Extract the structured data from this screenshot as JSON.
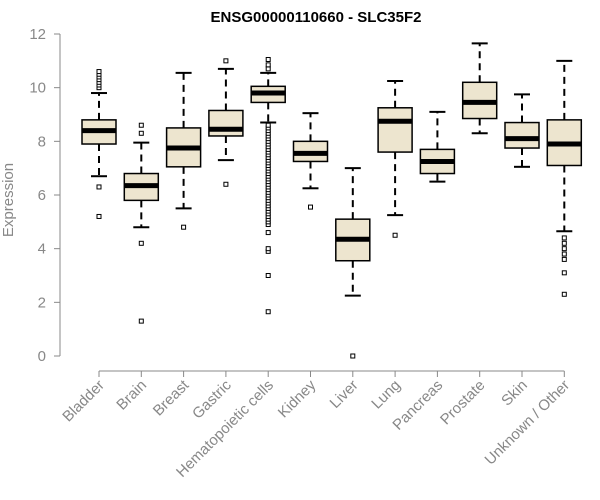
{
  "chart_data": {
    "type": "boxplot",
    "title": "ENSG00000110660 - SLC35F2",
    "xlabel": "",
    "ylabel": "Expression",
    "ylim": [
      0,
      12
    ],
    "yticks": [
      0,
      2,
      4,
      6,
      8,
      10,
      12
    ],
    "grid": false,
    "legend": "none",
    "colors": {
      "box_fill": "#ede5cf",
      "stroke": "#000000",
      "axis_text": "#888888",
      "title": "#000000"
    },
    "categories": [
      "Bladder",
      "Brain",
      "Breast",
      "Gastric",
      "Hematopoietic cells",
      "Kidney",
      "Liver",
      "Lung",
      "Pancreas",
      "Prostate",
      "Skin",
      "Unknown / Other"
    ],
    "boxes": [
      {
        "category": "Bladder",
        "whisker_low": 6.7,
        "q1": 7.9,
        "median": 8.4,
        "q3": 8.8,
        "whisker_high": 9.8,
        "outliers": [
          5.2,
          6.3,
          10.0,
          10.1,
          10.2,
          10.3,
          10.4,
          10.5,
          10.6
        ]
      },
      {
        "category": "Brain",
        "whisker_low": 4.8,
        "q1": 5.8,
        "median": 6.35,
        "q3": 6.8,
        "whisker_high": 7.95,
        "outliers": [
          1.3,
          4.2,
          8.3,
          8.6
        ]
      },
      {
        "category": "Breast",
        "whisker_low": 5.5,
        "q1": 7.05,
        "median": 7.75,
        "q3": 8.5,
        "whisker_high": 10.55,
        "outliers": [
          4.8
        ]
      },
      {
        "category": "Gastric",
        "whisker_low": 7.3,
        "q1": 8.2,
        "median": 8.45,
        "q3": 9.15,
        "whisker_high": 10.7,
        "outliers": [
          6.4,
          11.0
        ]
      },
      {
        "category": "Hematopoietic cells",
        "whisker_low": 8.7,
        "q1": 9.45,
        "median": 9.8,
        "q3": 10.05,
        "whisker_high": 10.55,
        "outliers": [
          1.65,
          3.0,
          3.9,
          4.0,
          4.6,
          4.9,
          5.0,
          5.1,
          5.2,
          5.3,
          5.4,
          5.5,
          5.6,
          5.7,
          5.8,
          5.9,
          6.0,
          6.1,
          6.2,
          6.3,
          6.4,
          6.5,
          6.6,
          6.7,
          6.8,
          6.9,
          7.0,
          7.1,
          7.2,
          7.3,
          7.4,
          7.5,
          7.6,
          7.7,
          7.8,
          7.9,
          8.0,
          8.1,
          8.2,
          8.3,
          8.4,
          8.5,
          8.6,
          10.7,
          10.85,
          11.05
        ]
      },
      {
        "category": "Kidney",
        "whisker_low": 6.25,
        "q1": 7.25,
        "median": 7.55,
        "q3": 8.0,
        "whisker_high": 9.05,
        "outliers": [
          5.55
        ]
      },
      {
        "category": "Liver",
        "whisker_low": 2.25,
        "q1": 3.55,
        "median": 4.35,
        "q3": 5.1,
        "whisker_high": 7.0,
        "outliers": [
          0.0
        ]
      },
      {
        "category": "Lung",
        "whisker_low": 5.25,
        "q1": 7.6,
        "median": 8.75,
        "q3": 9.25,
        "whisker_high": 10.25,
        "outliers": [
          4.5
        ]
      },
      {
        "category": "Pancreas",
        "whisker_low": 6.5,
        "q1": 6.8,
        "median": 7.25,
        "q3": 7.7,
        "whisker_high": 9.1,
        "outliers": []
      },
      {
        "category": "Prostate",
        "whisker_low": 8.3,
        "q1": 8.85,
        "median": 9.45,
        "q3": 10.2,
        "whisker_high": 11.65,
        "outliers": []
      },
      {
        "category": "Skin",
        "whisker_low": 7.05,
        "q1": 7.75,
        "median": 8.1,
        "q3": 8.7,
        "whisker_high": 9.75,
        "outliers": []
      },
      {
        "category": "Unknown / Other",
        "whisker_low": 4.65,
        "q1": 7.1,
        "median": 7.9,
        "q3": 8.8,
        "whisker_high": 11.0,
        "outliers": [
          2.3,
          3.1,
          3.6,
          3.8,
          4.0,
          4.2,
          4.4
        ]
      }
    ]
  }
}
